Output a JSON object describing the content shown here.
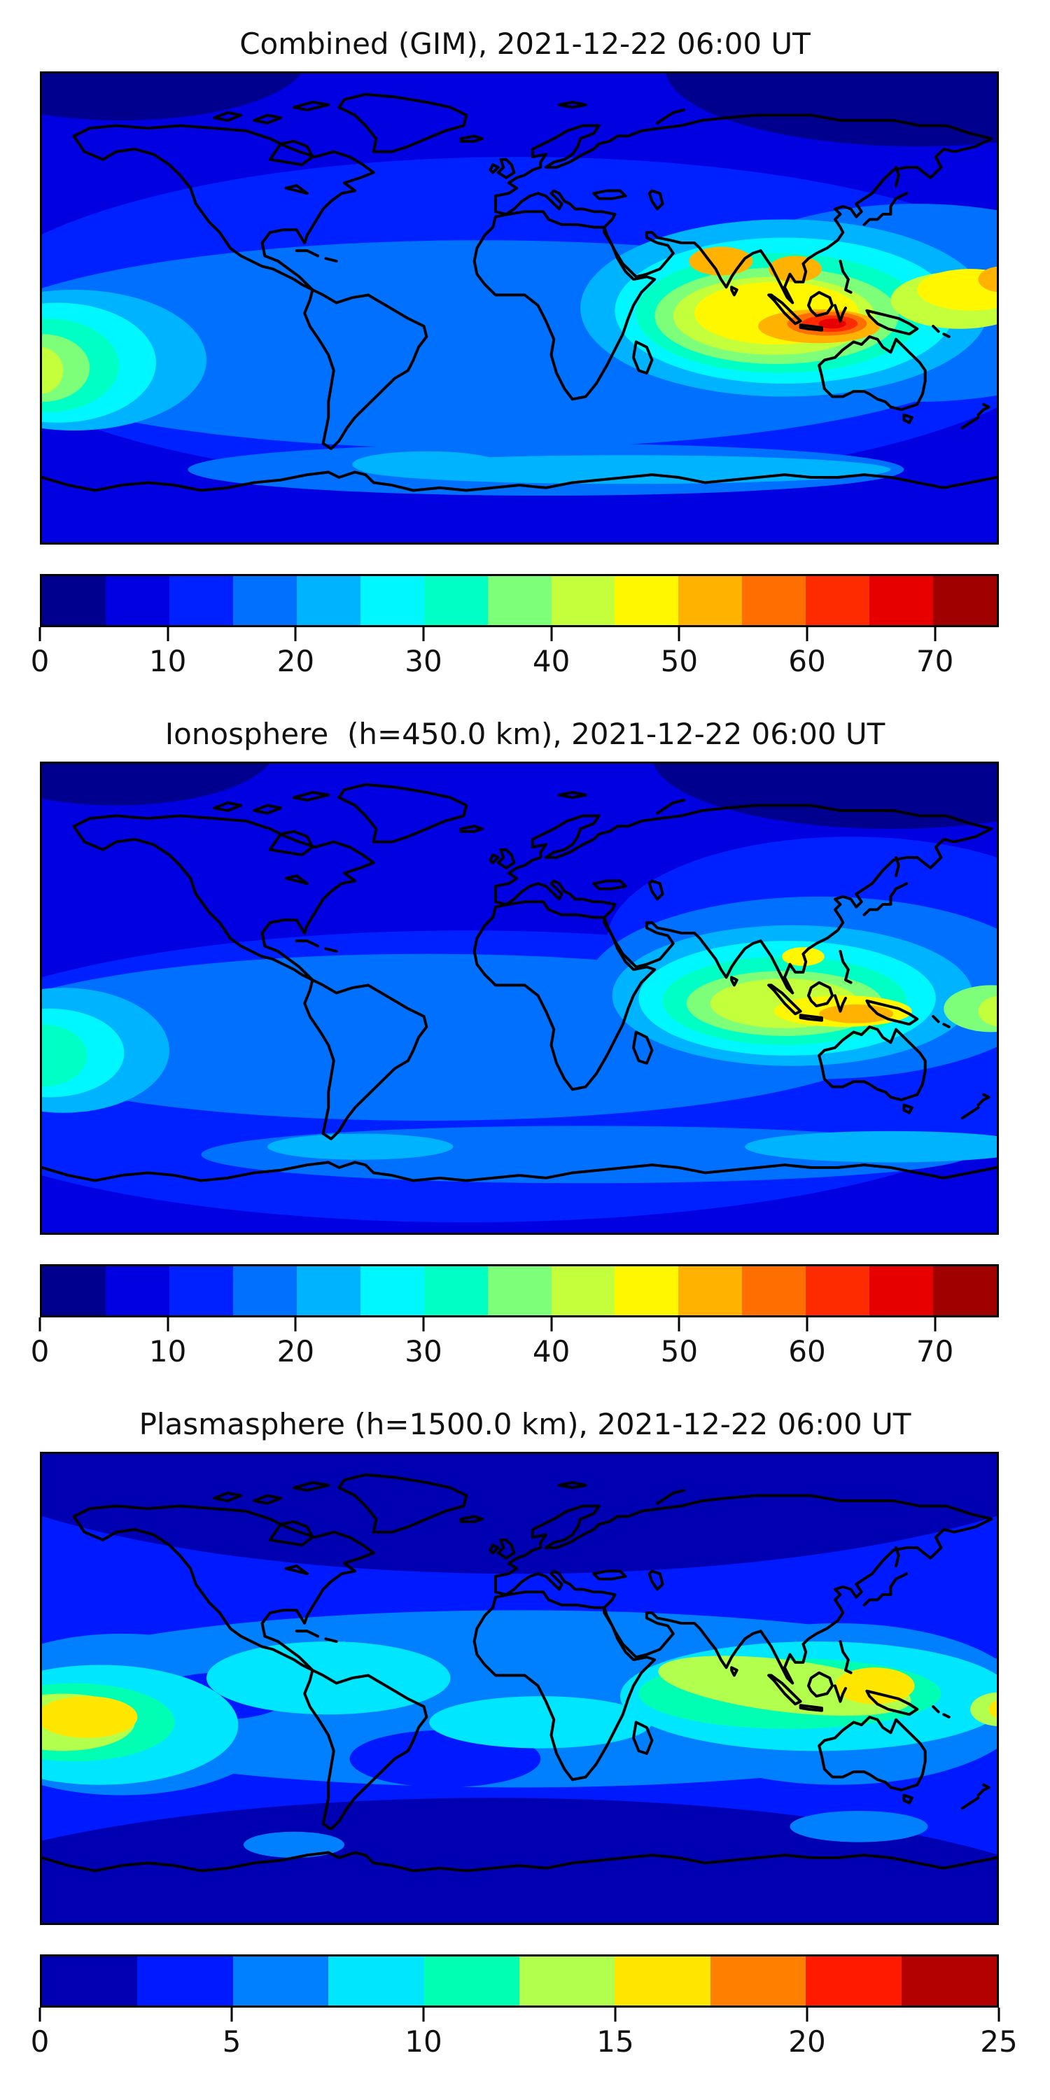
{
  "panels": [
    {
      "name": "combined-gim",
      "title": "Combined (GIM), 2021-12-22 06:00 UT",
      "colorbar": {
        "vmin": 0,
        "vmax": 75,
        "ticks": [
          0,
          10,
          20,
          30,
          40,
          50,
          60,
          70
        ],
        "segment_colors": [
          "#00008F",
          "#0000E1",
          "#0021FF",
          "#0070FF",
          "#00B3FF",
          "#00F7FF",
          "#00FFC4",
          "#7DFF7A",
          "#C4FF3B",
          "#FFF700",
          "#FFB300",
          "#FF6E00",
          "#FF2B00",
          "#E60000",
          "#A10000"
        ]
      },
      "map": {
        "background": "#0000E1",
        "blobs": [
          [
            "#00008F",
            150,
            92,
            95,
            30
          ],
          [
            "#00008F",
            -150,
            96,
            70,
            24
          ],
          [
            "#0021FF",
            0,
            -5,
            212,
            63
          ],
          [
            "#0070FF",
            -15,
            -14,
            196,
            40
          ],
          [
            "#0070FF",
            150,
            2,
            85,
            38
          ],
          [
            "#0070FF",
            -70,
            9,
            26,
            10
          ],
          [
            "#0070FF",
            10,
            -62,
            135,
            10
          ],
          [
            "#00B3FF",
            -168,
            -20,
            50,
            27
          ],
          [
            "#00B3FF",
            100,
            0,
            77,
            34
          ],
          [
            "#00B3FF",
            40,
            -62,
            100,
            5.5
          ],
          [
            "#00B3FF",
            -35,
            -60,
            28,
            5
          ],
          [
            "#00F7FF",
            -174,
            -21,
            37,
            23
          ],
          [
            "#00F7FF",
            100,
            -1,
            64,
            28
          ],
          [
            "#00FFC4",
            -178,
            -22,
            27,
            18
          ],
          [
            "#00FFC4",
            98,
            -2,
            54,
            23
          ],
          [
            "#7DFF7A",
            -180,
            -23,
            18,
            13
          ],
          [
            "#7DFF7A",
            97,
            -3,
            46,
            18.5
          ],
          [
            "#C4FF3B",
            -181,
            -24,
            9,
            9
          ],
          [
            "#C4FF3B",
            96,
            -3,
            38,
            15
          ],
          [
            "#C4FF3B",
            166,
            3,
            26,
            11
          ],
          [
            "#FFF700",
            97,
            -2,
            31,
            12
          ],
          [
            "#FFF700",
            170,
            7,
            20,
            8
          ],
          [
            "#FFB300",
            76,
            18,
            12,
            5.5
          ],
          [
            "#FFB300",
            104,
            15,
            10,
            5
          ],
          [
            "#FFB300",
            113,
            -7,
            23,
            6.5
          ],
          [
            "#FFB300",
            182,
            11,
            9,
            5
          ],
          [
            "#FF6E00",
            116,
            -6,
            15,
            4.6
          ],
          [
            "#FF2B00",
            117,
            -6,
            10.5,
            3.2
          ],
          [
            "#E60000",
            118,
            -6,
            5.2,
            1.9
          ]
        ]
      }
    },
    {
      "name": "ionosphere",
      "title": "Ionosphere  (h=450.0 km), 2021-12-22 06:00 UT",
      "colorbar": {
        "vmin": 0,
        "vmax": 75,
        "ticks": [
          0,
          10,
          20,
          30,
          40,
          50,
          60,
          70
        ],
        "segment_colors": [
          "#00008F",
          "#0000E1",
          "#0021FF",
          "#0070FF",
          "#00B3FF",
          "#00F7FF",
          "#00FFC4",
          "#7DFF7A",
          "#C4FF3B",
          "#FFF700",
          "#FFB300",
          "#FF6E00",
          "#FF2B00",
          "#E60000",
          "#A10000"
        ]
      },
      "map": {
        "background": "#0000E1",
        "blobs": [
          [
            "#00008F",
            140,
            93,
            90,
            28
          ],
          [
            "#00008F",
            -152,
            96,
            60,
            22
          ],
          [
            "#0021FF",
            -20,
            -30,
            218,
            56
          ],
          [
            "#0021FF",
            125,
            22,
            92,
            40
          ],
          [
            "#0070FF",
            -35,
            -15,
            175,
            32
          ],
          [
            "#0070FF",
            113,
            4,
            88,
            35
          ],
          [
            "#0070FF",
            25,
            -60,
            145,
            11
          ],
          [
            "#00B3FF",
            -172,
            -20,
            40,
            24
          ],
          [
            "#00B3FF",
            103,
            1,
            68,
            27
          ],
          [
            "#00B3FF",
            140,
            -57,
            55,
            6
          ],
          [
            "#00B3FF",
            -60,
            -57,
            35,
            5
          ],
          [
            "#00F7FF",
            -177,
            -21,
            28,
            17
          ],
          [
            "#00F7FF",
            101,
            0,
            56,
            22
          ],
          [
            "#00FFC4",
            -180,
            -22,
            17,
            12
          ],
          [
            "#00FFC4",
            100,
            -1,
            46,
            17
          ],
          [
            "#7DFF7A",
            100,
            -2,
            37,
            12.5
          ],
          [
            "#7DFF7A",
            178,
            -4,
            18,
            9
          ],
          [
            "#C4FF3B",
            100,
            -2,
            28,
            9.5
          ],
          [
            "#C4FF3B",
            182,
            -5,
            9,
            6
          ],
          [
            "#FFF700",
            122,
            -5,
            26,
            6
          ],
          [
            "#FFF700",
            107,
            16,
            8,
            3.6
          ],
          [
            "#FFB300",
            127,
            -6,
            14,
            3.6
          ]
        ]
      }
    },
    {
      "name": "plasmasphere",
      "title": "Plasmasphere (h=1500.0 km), 2021-12-22 06:00 UT",
      "colorbar": {
        "vmin": 0,
        "vmax": 25,
        "ticks": [
          0,
          5,
          10,
          15,
          20,
          25
        ],
        "segment_colors": [
          "#0000B3",
          "#001AFF",
          "#0080FF",
          "#00E6FF",
          "#00FFB3",
          "#B3FF4D",
          "#FFE600",
          "#FF8000",
          "#FF1A00",
          "#B30000"
        ]
      },
      "map": {
        "background": "#001AFF",
        "blobs": [
          [
            "#0000B3",
            0,
            104,
            232,
            60
          ],
          [
            "#0000B3",
            -10,
            -99,
            242,
            57
          ],
          [
            "#0000B3",
            -64,
            -55,
            23,
            8
          ],
          [
            "#0080FF",
            0,
            -4,
            202,
            34
          ],
          [
            "#0080FF",
            -150,
            -10,
            62,
            31
          ],
          [
            "#0080FF",
            120,
            -6,
            72,
            31
          ],
          [
            "#0080FF",
            128,
            -53,
            26,
            6
          ],
          [
            "#0080FF",
            -85,
            -60,
            19,
            5
          ],
          [
            "#001AFF",
            -113,
            -3,
            26,
            9
          ],
          [
            "#001AFF",
            -28,
            -27,
            36,
            11
          ],
          [
            "#00E6FF",
            -158,
            -14,
            52,
            23
          ],
          [
            "#00E6FF",
            -72,
            4,
            46,
            14
          ],
          [
            "#00E6FF",
            112,
            -3,
            74,
            21
          ],
          [
            "#00E6FF",
            8,
            -13,
            42,
            10
          ],
          [
            "#00FFB3",
            -168,
            -13,
            38,
            15
          ],
          [
            "#00FFB3",
            102,
            -2,
            57,
            13.5
          ],
          [
            "#B3FF4D",
            -172,
            -13,
            27,
            11
          ],
          [
            "#B3FF4D",
            100,
            1,
            48,
            10,
            7
          ],
          [
            "#B3FF4D",
            181,
            -8,
            11,
            6.5
          ],
          [
            "#FFE600",
            -163,
            -11,
            19,
            8
          ],
          [
            "#FFE600",
            134,
            1,
            15,
            7
          ],
          [
            "#FFE600",
            183,
            -8,
            6,
            4
          ]
        ]
      }
    }
  ],
  "chart_data": [
    {
      "type": "heatmap",
      "title": "Combined (GIM), 2021-12-22 06:00 UT",
      "colormap": "jet, 15 discrete levels of 5",
      "value_range": [
        0,
        75
      ],
      "colorbar_ticks": [
        0,
        10,
        20,
        30,
        40,
        50,
        60,
        70
      ],
      "projection": "equirectangular world map with coastlines, lon -180..180, lat -90..90, no axis ticks",
      "features": [
        {
          "label": "primary maximum",
          "location": "Indonesia / New Guinea (~118E, 6S)",
          "value": "65-70"
        },
        {
          "label": "secondary crest",
          "location": "India (~76E, 18N) and Indochina (~104E, 15N)",
          "value": "50-55"
        },
        {
          "label": "wrapped equatorial crest",
          "location": "central Pacific at left map edge (~180W, 24S)",
          "value": "40-45"
        },
        {
          "label": "minimum",
          "location": "polar caps, north high latitudes",
          "value": "0-10"
        }
      ]
    },
    {
      "type": "heatmap",
      "title": "Ionosphere  (h=450.0 km), 2021-12-22 06:00 UT",
      "colormap": "jet, 15 discrete levels of 5",
      "value_range": [
        0,
        75
      ],
      "colorbar_ticks": [
        0,
        10,
        20,
        30,
        40,
        50,
        60,
        70
      ],
      "projection": "equirectangular world map with coastlines, lon -180..180, lat -90..90, no axis ticks",
      "features": [
        {
          "label": "primary maximum",
          "location": "Indonesia / New Guinea (~127E, 6S)",
          "value": "50-55"
        },
        {
          "label": "secondary crest",
          "location": "South China / Vietnam coast (~107E, 16N)",
          "value": "45-50"
        },
        {
          "label": "wrapped equatorial crest",
          "location": "central Pacific at left map edge (~180W, 22S)",
          "value": "30-35"
        },
        {
          "label": "minimum",
          "location": "polar caps and American sector night side",
          "value": "0-10"
        }
      ]
    },
    {
      "type": "heatmap",
      "title": "Plasmasphere (h=1500.0 km), 2021-12-22 06:00 UT",
      "colormap": "jet, 10 discrete levels of 2.5",
      "value_range": [
        0,
        25
      ],
      "colorbar_ticks": [
        0,
        5,
        10,
        15,
        20,
        25
      ],
      "projection": "equirectangular world map with coastlines, lon -180..180, lat -90..90, no axis ticks",
      "features": [
        {
          "label": "equatorial belt maxima",
          "location": "central Pacific at left edge (~163W, 11S) and west Pacific (~134E, 0N)",
          "value": "15-17.5"
        },
        {
          "label": "bright tropical belt",
          "location": "two cyan-green bands spanning ~25N to 30S around the globe",
          "value": "7.5-12.5"
        },
        {
          "label": "minimum",
          "location": "high latitudes / polar caps and near Cape Horn (~64W, 55S)",
          "value": "0-2.5"
        }
      ]
    }
  ]
}
